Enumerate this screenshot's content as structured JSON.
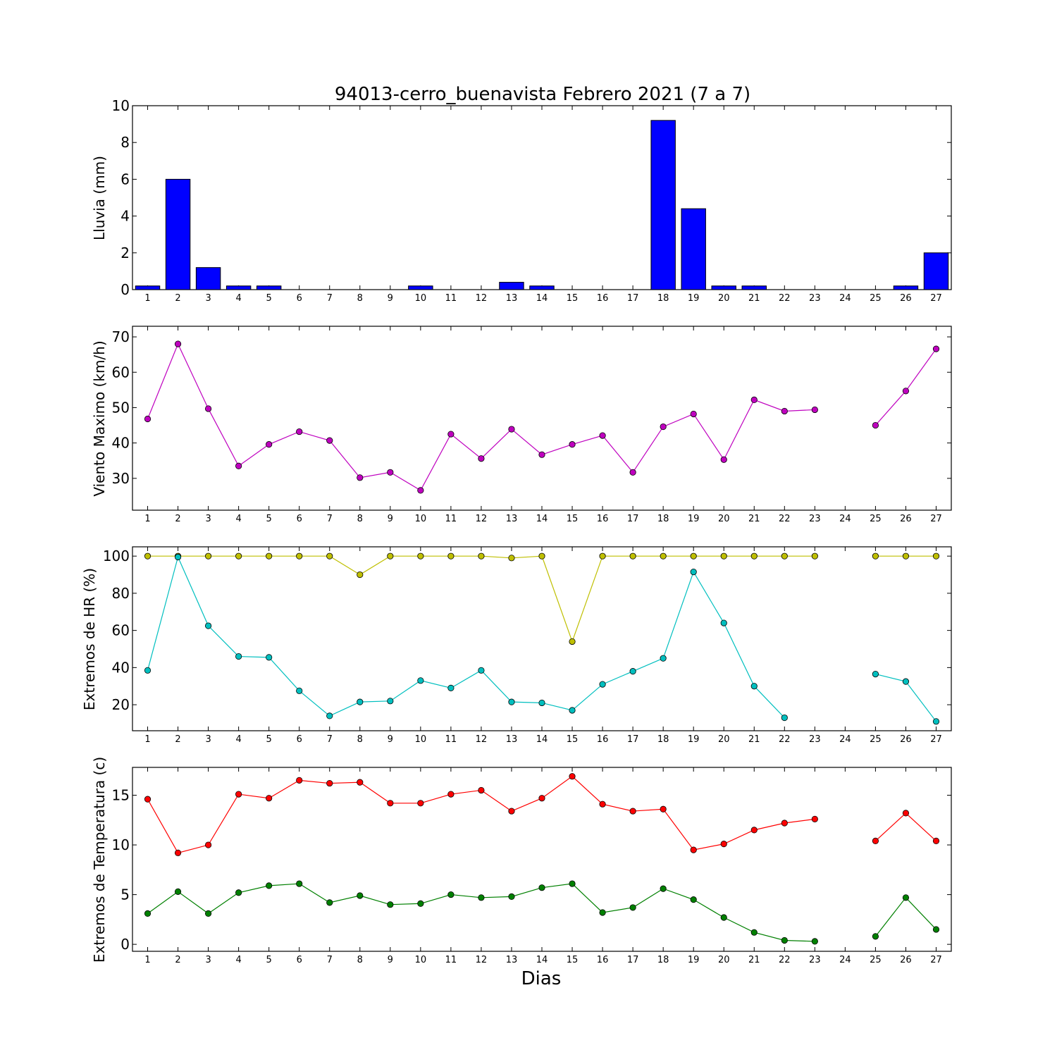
{
  "chart_data": [
    {
      "type": "bar",
      "title": "94013-cerro_buenavista Febrero 2021  (7 a 7)",
      "ylabel": "Lluvia (mm)",
      "xlabel": "",
      "x": [
        1,
        2,
        3,
        4,
        5,
        6,
        7,
        8,
        9,
        10,
        11,
        12,
        13,
        14,
        15,
        16,
        17,
        18,
        19,
        20,
        21,
        22,
        23,
        24,
        25,
        26,
        27
      ],
      "ylim": [
        0,
        10
      ],
      "yticks": [
        0,
        2,
        4,
        6,
        8,
        10
      ],
      "series": [
        {
          "color": "#0000ff",
          "values": [
            0.2,
            6.0,
            1.2,
            0.2,
            0.2,
            0,
            0,
            0,
            0,
            0.2,
            0,
            0,
            0.4,
            0.2,
            0,
            0,
            0,
            9.2,
            4.4,
            0.2,
            0.2,
            0,
            0,
            0,
            0,
            0.2,
            2.0
          ]
        }
      ]
    },
    {
      "type": "line",
      "title": "",
      "ylabel": "Viento Maximo (km/h)",
      "xlabel": "",
      "x": [
        1,
        2,
        3,
        4,
        5,
        6,
        7,
        8,
        9,
        10,
        11,
        12,
        13,
        14,
        15,
        16,
        17,
        18,
        19,
        20,
        21,
        22,
        23,
        24,
        25,
        26,
        27
      ],
      "ylim": [
        21,
        73
      ],
      "yticks": [
        30,
        40,
        50,
        60,
        70
      ],
      "series": [
        {
          "color": "#bf00bf",
          "values": [
            46.8,
            68.0,
            49.7,
            33.5,
            39.6,
            43.2,
            40.7,
            30.2,
            31.7,
            26.6,
            42.5,
            35.6,
            43.9,
            36.7,
            39.6,
            42.1,
            31.7,
            44.6,
            48.2,
            35.3,
            52.2,
            49.0,
            49.4,
            null,
            45.0,
            54.7,
            66.6
          ]
        }
      ]
    },
    {
      "type": "line",
      "title": "",
      "ylabel": "Extremos de HR (%)",
      "xlabel": "",
      "x": [
        1,
        2,
        3,
        4,
        5,
        6,
        7,
        8,
        9,
        10,
        11,
        12,
        13,
        14,
        15,
        16,
        17,
        18,
        19,
        20,
        21,
        22,
        23,
        24,
        25,
        26,
        27
      ],
      "ylim": [
        6,
        105
      ],
      "yticks": [
        20,
        40,
        60,
        80,
        100
      ],
      "series": [
        {
          "color": "#bfbf00",
          "values": [
            100,
            100,
            100,
            100,
            100,
            100,
            100,
            90,
            100,
            100,
            100,
            100,
            99,
            100,
            54,
            100,
            100,
            100,
            100,
            100,
            100,
            100,
            100,
            null,
            100,
            100,
            100
          ]
        },
        {
          "color": "#00bfbf",
          "values": [
            38.5,
            99.5,
            62.5,
            46,
            45.5,
            27.5,
            14,
            21.5,
            22,
            33,
            29,
            38.5,
            21.5,
            21,
            17,
            31,
            38,
            45,
            91.5,
            64,
            30,
            13,
            null,
            null,
            36.5,
            32.5,
            11
          ]
        }
      ]
    },
    {
      "type": "line",
      "title": "",
      "ylabel": "Extremos de Temperatura (c)",
      "xlabel": "Dias",
      "x": [
        1,
        2,
        3,
        4,
        5,
        6,
        7,
        8,
        9,
        10,
        11,
        12,
        13,
        14,
        15,
        16,
        17,
        18,
        19,
        20,
        21,
        22,
        23,
        24,
        25,
        26,
        27
      ],
      "ylim": [
        -0.7,
        17.8
      ],
      "yticks": [
        0,
        5,
        10,
        15
      ],
      "series": [
        {
          "color": "#ff0000",
          "values": [
            14.6,
            9.2,
            10.0,
            15.1,
            14.7,
            16.5,
            16.2,
            16.3,
            14.2,
            14.2,
            15.1,
            15.5,
            13.4,
            14.7,
            16.9,
            14.1,
            13.4,
            13.6,
            9.5,
            10.1,
            11.5,
            12.2,
            12.6,
            null,
            10.4,
            13.2,
            10.4
          ]
        },
        {
          "color": "#008000",
          "values": [
            3.1,
            5.3,
            3.1,
            5.2,
            5.9,
            6.1,
            4.2,
            4.9,
            4.0,
            4.1,
            5.0,
            4.7,
            4.8,
            5.7,
            6.1,
            3.2,
            3.7,
            5.6,
            4.5,
            2.7,
            1.2,
            0.4,
            0.3,
            null,
            0.8,
            4.7,
            1.5
          ]
        }
      ]
    }
  ]
}
